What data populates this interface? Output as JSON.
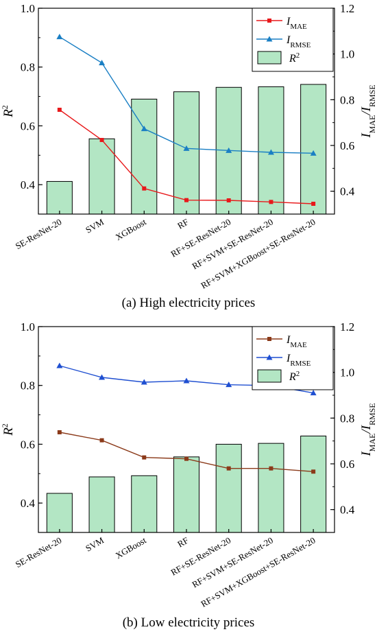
{
  "chart_data": [
    {
      "type": "bar",
      "caption": "(a) High electricity prices",
      "categories": [
        "SE-ResNet-20",
        "SVM",
        "XGBoost",
        "RF",
        "RF+SE-ResNet-20",
        "RF+SVM+SE-ResNet-20",
        "RF+SVM+XGBoost+SE-ResNet-20"
      ],
      "ylabel_left": "R",
      "ylabel_left_sup": "2",
      "ylabel_right": "I",
      "ylabel_right_sub1": "MAE",
      "ylabel_right_mid": "/I",
      "ylabel_right_sub2": "RMSE",
      "ylim_left": [
        0.3,
        1.0
      ],
      "ylim_right": [
        0.3,
        1.2
      ],
      "left_ticks": [
        "0.4",
        "0.6",
        "0.8",
        "1.0"
      ],
      "right_ticks": [
        "0.4",
        "0.6",
        "0.8",
        "1.0",
        "1.2"
      ],
      "legend_position": "top-right",
      "bars": {
        "name": "R",
        "sup": "2",
        "color": "#b3e6c4",
        "values": [
          0.411,
          0.556,
          0.691,
          0.716,
          0.731,
          0.733,
          0.741
        ]
      },
      "lines": [
        {
          "name": "I",
          "sub": "MAE",
          "color": "#e8191b",
          "marker": "square",
          "values": [
            0.756,
            0.624,
            0.412,
            0.361,
            0.36,
            0.353,
            0.345
          ]
        },
        {
          "name": "I",
          "sub": "RMSE",
          "color": "#1a7fc4",
          "marker": "triangle",
          "values": [
            1.075,
            0.961,
            0.673,
            0.587,
            0.578,
            0.57,
            0.566
          ]
        }
      ]
    },
    {
      "type": "bar",
      "caption": "(b) Low electricity prices",
      "categories": [
        "SE-ResNet-20",
        "SVM",
        "XGBoost",
        "RF",
        "RF+SE-ResNet-20",
        "RF+SVM+SE-ResNet-20",
        "RF+SVM+XGBoost+SE-ResNet-20"
      ],
      "ylabel_left": "R",
      "ylabel_left_sup": "2",
      "ylabel_right": "I",
      "ylabel_right_sub1": "MAE",
      "ylabel_right_mid": "/I",
      "ylabel_right_sub2": "RMSE",
      "ylim_left": [
        0.3,
        1.0
      ],
      "ylim_right": [
        0.3,
        1.2
      ],
      "left_ticks": [
        "0.4",
        "0.6",
        "0.8",
        "1.0"
      ],
      "right_ticks": [
        "0.4",
        "0.6",
        "0.8",
        "1.0",
        "1.2"
      ],
      "legend_position": "top-right",
      "bars": {
        "name": "R",
        "sup": "2",
        "color": "#b3e6c4",
        "values": [
          0.433,
          0.489,
          0.493,
          0.557,
          0.6,
          0.603,
          0.628
        ]
      },
      "lines": [
        {
          "name": "I",
          "sub": "MAE",
          "color": "#8b3a1a",
          "marker": "square",
          "values": [
            0.738,
            0.703,
            0.628,
            0.622,
            0.58,
            0.58,
            0.566
          ]
        },
        {
          "name": "I",
          "sub": "RMSE",
          "color": "#1f4fd1",
          "marker": "triangle",
          "values": [
            1.029,
            0.978,
            0.957,
            0.963,
            0.946,
            0.942,
            0.91
          ]
        }
      ]
    }
  ]
}
